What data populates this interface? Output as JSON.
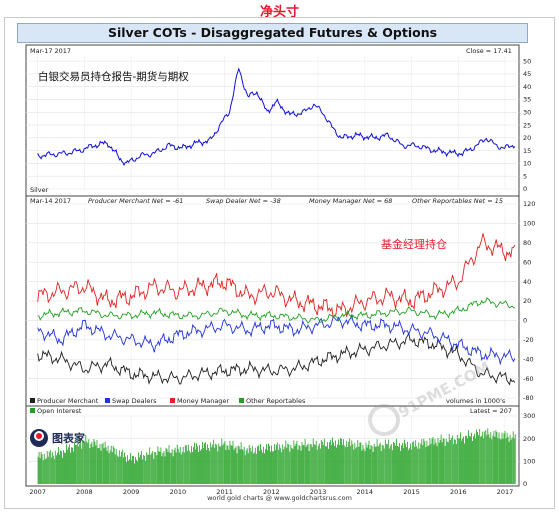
{
  "header": {
    "annotation": "净头寸",
    "title": "Silver COTs - Disaggregated Futures & Options"
  },
  "colors": {
    "price": "#1010d8",
    "producer_merchant": "#222222",
    "swap_dealers": "#2233dd",
    "money_manager": "#e02424",
    "other_reportables": "#25a025",
    "open_interest": "#20a020",
    "annotation": "#e8192c"
  },
  "price_panel": {
    "date": "Mar-17 2017",
    "close": "Close = 17.41",
    "label": "Silver",
    "annotation": "白银交易员持仓报告-期货与期权"
  },
  "cot_panel": {
    "date": "Mar-14 2017",
    "producer_net": "Producer Merchant Net = -61",
    "swap_net": "Swap Dealer Net = -38",
    "money_net": "Money Manager Net = 68",
    "other_net": "Other Reportables Net = 15",
    "annotation": "基金经理持仓",
    "legend": [
      "Producer Merchant",
      "Swap Dealers",
      "Money Manager",
      "Other Reportables"
    ],
    "volume_note": "volumes in 1000's"
  },
  "oi_panel": {
    "legend": "Open Interest",
    "latest": "Latest = 207",
    "logo_text": "图表家"
  },
  "footer": {
    "credit": "world gold charts @ www.goldchartsrus.com"
  },
  "watermark": "91PME.COM",
  "chart_data": [
    {
      "type": "line",
      "title": "Silver",
      "x_tick_labels": [
        "2007",
        "2008",
        "2009",
        "2010",
        "2011",
        "2012",
        "2013",
        "2014",
        "2015",
        "2016",
        "2017"
      ],
      "y_ticks": [
        0,
        5,
        10,
        15,
        20,
        25,
        30,
        35,
        40,
        45,
        50
      ],
      "ylim": [
        0,
        52
      ],
      "series": [
        {
          "name": "Silver",
          "x": [
            2007.0,
            2007.3,
            2007.6,
            2007.9,
            2008.2,
            2008.5,
            2008.75,
            2008.9,
            2009.2,
            2009.5,
            2009.8,
            2010.1,
            2010.4,
            2010.7,
            2010.9,
            2011.1,
            2011.3,
            2011.5,
            2011.7,
            2011.9,
            2012.1,
            2012.4,
            2012.7,
            2012.9,
            2013.1,
            2013.3,
            2013.5,
            2013.8,
            2014.2,
            2014.5,
            2014.8,
            2015.1,
            2015.5,
            2015.9,
            2016.1,
            2016.4,
            2016.6,
            2016.8,
            2017.0,
            2017.21
          ],
          "values": [
            13,
            13.5,
            14,
            15,
            17,
            18,
            12,
            10,
            13,
            14,
            17,
            16,
            18,
            19,
            25,
            30,
            47,
            36,
            38,
            30,
            34,
            29,
            30,
            33,
            30,
            24,
            20,
            21,
            20,
            21,
            17,
            17,
            15,
            14,
            14,
            17,
            20,
            17,
            16,
            17.4
          ]
        }
      ]
    },
    {
      "type": "line",
      "title": "Silver COTs - Disaggregated Futures & Options",
      "ylabel": "volumes in 1000's",
      "y_ticks": [
        -80,
        -60,
        -40,
        -20,
        0,
        20,
        40,
        60,
        80,
        100,
        120
      ],
      "ylim": [
        -80,
        120
      ],
      "series": [
        {
          "name": "Producer Merchant",
          "x": [
            2007.0,
            2007.5,
            2008.0,
            2008.5,
            2009.0,
            2009.5,
            2010.0,
            2010.5,
            2011.0,
            2011.5,
            2012.0,
            2012.5,
            2013.0,
            2013.5,
            2014.0,
            2014.5,
            2015.0,
            2015.5,
            2016.0,
            2016.5,
            2017.21
          ],
          "values": [
            -35,
            -40,
            -50,
            -45,
            -55,
            -58,
            -60,
            -55,
            -52,
            -50,
            -52,
            -50,
            -42,
            -35,
            -30,
            -25,
            -20,
            -25,
            -35,
            -55,
            -61
          ]
        },
        {
          "name": "Swap Dealers",
          "x": [
            2007.0,
            2007.5,
            2008.0,
            2008.5,
            2009.0,
            2009.5,
            2010.0,
            2010.5,
            2011.0,
            2011.5,
            2012.0,
            2012.5,
            2013.0,
            2013.5,
            2014.0,
            2014.5,
            2015.0,
            2015.5,
            2016.0,
            2016.5,
            2017.21
          ],
          "values": [
            -10,
            -20,
            -5,
            -15,
            -20,
            -25,
            -15,
            -10,
            -5,
            -10,
            -5,
            -10,
            -5,
            0,
            -5,
            -5,
            -10,
            -15,
            -25,
            -35,
            -38
          ]
        },
        {
          "name": "Money Manager",
          "x": [
            2007.0,
            2007.5,
            2008.0,
            2008.5,
            2009.0,
            2009.5,
            2010.0,
            2010.5,
            2011.0,
            2011.5,
            2012.0,
            2012.5,
            2013.0,
            2013.5,
            2014.0,
            2014.5,
            2015.0,
            2015.5,
            2016.0,
            2016.5,
            2017.21
          ],
          "values": [
            25,
            30,
            35,
            20,
            25,
            35,
            30,
            35,
            40,
            25,
            30,
            20,
            15,
            10,
            20,
            25,
            20,
            30,
            40,
            80,
            68
          ]
        },
        {
          "name": "Other Reportables",
          "x": [
            2007.0,
            2007.5,
            2008.0,
            2008.5,
            2009.0,
            2009.5,
            2010.0,
            2010.5,
            2011.0,
            2011.5,
            2012.0,
            2012.5,
            2013.0,
            2013.5,
            2014.0,
            2014.5,
            2015.0,
            2015.5,
            2016.0,
            2016.5,
            2017.21
          ],
          "values": [
            5,
            8,
            10,
            5,
            5,
            8,
            5,
            5,
            10,
            5,
            5,
            3,
            0,
            5,
            5,
            8,
            10,
            5,
            10,
            20,
            15
          ]
        }
      ]
    },
    {
      "type": "bar",
      "title": "Open Interest",
      "x_tick_labels": [
        "2007",
        "2008",
        "2009",
        "2010",
        "2011",
        "2012",
        "2013",
        "2014",
        "2015",
        "2016",
        "2017"
      ],
      "y_ticks": [
        0,
        100,
        200,
        300
      ],
      "ylim": [
        0,
        300
      ],
      "series": [
        {
          "name": "Open Interest",
          "x": [
            2007.0,
            2007.5,
            2008.0,
            2008.5,
            2009.0,
            2009.5,
            2010.0,
            2010.5,
            2011.0,
            2011.5,
            2012.0,
            2012.5,
            2013.0,
            2013.5,
            2014.0,
            2014.5,
            2015.0,
            2015.5,
            2016.0,
            2016.5,
            2017.21
          ],
          "values": [
            120,
            140,
            190,
            160,
            110,
            140,
            150,
            165,
            175,
            150,
            160,
            170,
            175,
            185,
            165,
            175,
            170,
            190,
            200,
            225,
            207
          ]
        }
      ]
    }
  ]
}
